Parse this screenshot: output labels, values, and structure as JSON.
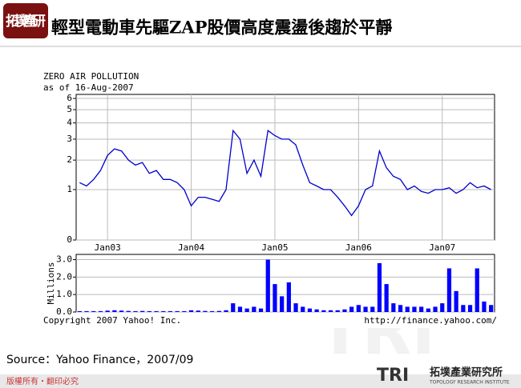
{
  "slide": {
    "title": "輕型電動車先驅ZAP股價高度震盪後趨於平靜",
    "logo_mark": "拓墣產研",
    "source": "Source：Yahoo Finance，2007/09",
    "footer": "版權所有・翻印必究",
    "org_short": "TRI",
    "org_name": "拓墣產業研究所",
    "org_english": "TOPOLOGY RESEARCH INSTITUTE"
  },
  "chart_data": [
    {
      "type": "line",
      "title": "ZERO AIR POLLUTION",
      "subtitle": "as of 16-Aug-2007",
      "annotations": [
        "Copyright 2007 Yahoo! Inc.",
        "http://finance.yahoo.com/"
      ],
      "scale": "log1p",
      "grid": true,
      "categories": [
        null,
        null,
        null,
        null,
        "Jan03",
        null,
        null,
        null,
        null,
        null,
        null,
        null,
        null,
        null,
        null,
        null,
        "Jan04",
        null,
        null,
        null,
        null,
        null,
        null,
        null,
        null,
        null,
        null,
        null,
        "Jan05",
        null,
        null,
        null,
        null,
        null,
        null,
        null,
        null,
        null,
        null,
        null,
        "Jan06",
        null,
        null,
        null,
        null,
        null,
        null,
        null,
        null,
        null,
        null,
        null,
        "Jan07",
        null,
        null,
        null,
        null,
        null,
        null,
        null
      ],
      "series": [
        {
          "name": "ZERO AIR POLLUTION",
          "color": "#0000cc",
          "values": [
            1.2,
            1.1,
            1.3,
            1.6,
            2.2,
            2.5,
            2.4,
            2.0,
            1.8,
            1.9,
            1.5,
            1.6,
            1.3,
            1.3,
            1.2,
            1.0,
            0.6,
            0.8,
            0.8,
            0.75,
            0.7,
            1.0,
            3.5,
            3.0,
            1.5,
            2.0,
            1.4,
            3.5,
            3.2,
            3.0,
            3.0,
            2.7,
            1.8,
            1.2,
            1.1,
            1.0,
            1.0,
            0.8,
            0.6,
            0.4,
            0.6,
            1.0,
            1.1,
            2.4,
            1.7,
            1.4,
            1.3,
            1.0,
            1.1,
            0.95,
            0.9,
            1.0,
            1.0,
            1.05,
            0.9,
            1.0,
            1.2,
            1.05,
            1.1,
            1.0
          ]
        }
      ],
      "ylim": [
        0,
        6.4
      ],
      "yticks": [
        0,
        1,
        2,
        3,
        4,
        5,
        6
      ]
    },
    {
      "type": "bar",
      "ylabel": "Millions",
      "grid": true,
      "color": "#0000ff",
      "values": [
        0.05,
        0.05,
        0.05,
        0.05,
        0.08,
        0.1,
        0.08,
        0.06,
        0.05,
        0.06,
        0.05,
        0.05,
        0.05,
        0.05,
        0.05,
        0.05,
        0.1,
        0.08,
        0.06,
        0.05,
        0.06,
        0.1,
        0.5,
        0.3,
        0.2,
        0.3,
        0.2,
        3.0,
        1.6,
        0.9,
        1.7,
        0.5,
        0.3,
        0.2,
        0.15,
        0.1,
        0.1,
        0.1,
        0.15,
        0.3,
        0.4,
        0.3,
        0.3,
        2.8,
        1.6,
        0.5,
        0.4,
        0.3,
        0.3,
        0.3,
        0.2,
        0.3,
        0.5,
        2.5,
        1.2,
        0.4,
        0.4,
        2.5,
        0.6,
        0.4
      ],
      "ylim": [
        0,
        3.3
      ],
      "yticks": [
        {
          "value": 0,
          "label": "0.0"
        },
        {
          "value": 1,
          "label": "1.0"
        },
        {
          "value": 2,
          "label": "2.0"
        },
        {
          "value": 3,
          "label": "3.0"
        }
      ]
    }
  ]
}
